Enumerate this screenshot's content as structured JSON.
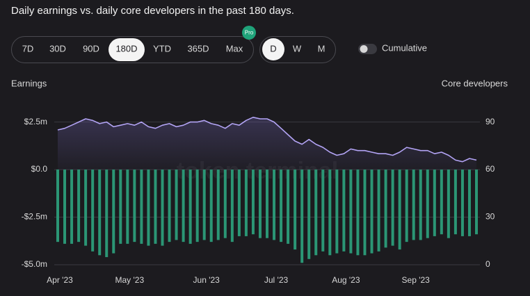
{
  "header": {
    "title": "Daily earnings vs. daily core developers in the past 180 days."
  },
  "controls": {
    "ranges": [
      "7D",
      "30D",
      "90D",
      "180D",
      "YTD",
      "365D",
      "Max"
    ],
    "selected_range": "180D",
    "pro_badge": "Pro",
    "granularity": [
      "D",
      "W",
      "M"
    ],
    "selected_granularity": "D",
    "toggle": "Cumulative"
  },
  "chart_data": {
    "type": "bar",
    "watermark": "token terminal",
    "categories": [
      "Apr '23",
      null,
      null,
      null,
      null,
      null,
      null,
      null,
      null,
      null,
      "May '23",
      null,
      null,
      null,
      null,
      null,
      null,
      null,
      null,
      null,
      null,
      "Jun '23",
      null,
      null,
      null,
      null,
      null,
      null,
      null,
      null,
      null,
      "Jul '23",
      null,
      null,
      null,
      null,
      null,
      null,
      null,
      null,
      null,
      "Aug '23",
      null,
      null,
      null,
      null,
      null,
      null,
      null,
      null,
      null,
      "Sep '23",
      null,
      null,
      null,
      null,
      null,
      null,
      null,
      null,
      null
    ],
    "series": [
      {
        "name": "Earnings",
        "type": "bar",
        "color": "#2b9675",
        "axis": "y",
        "values": [
          -3800000,
          -3900000,
          -3900000,
          -3800000,
          -4000000,
          -4300000,
          -4500000,
          -4600000,
          -4400000,
          -3900000,
          -3900000,
          -3800000,
          -3900000,
          -4000000,
          -3900000,
          -4000000,
          -3800000,
          -3700000,
          -3800000,
          -3900000,
          -3800000,
          -3700000,
          -3800000,
          -3700000,
          -3600000,
          -3800000,
          -3500000,
          -3500000,
          -3400000,
          -3600000,
          -3600000,
          -3700000,
          -3800000,
          -3900000,
          -4200000,
          -4900000,
          -4700000,
          -4500000,
          -4300000,
          -4500000,
          -4400000,
          -4300000,
          -4400000,
          -4500000,
          -4500000,
          -4400000,
          -4300000,
          -4100000,
          -4000000,
          -4200000,
          -3800000,
          -3700000,
          -3700000,
          -3600000,
          -3500000,
          -3400000,
          -3600000,
          -3400000,
          -3500000,
          -3500000,
          -3400000
        ]
      },
      {
        "name": "Core developers",
        "type": "line",
        "color": "#b3a4f5",
        "axis": "y2",
        "values": [
          85,
          86,
          88,
          90,
          92,
          91,
          89,
          90,
          87,
          88,
          89,
          88,
          90,
          87,
          86,
          88,
          89,
          87,
          88,
          90,
          90,
          91,
          89,
          88,
          86,
          89,
          88,
          91,
          93,
          92,
          92,
          90,
          86,
          82,
          78,
          76,
          79,
          76,
          74,
          71,
          69,
          70,
          73,
          72,
          72,
          71,
          70,
          70,
          69,
          71,
          74,
          73,
          72,
          72,
          70,
          71,
          69,
          66,
          65,
          67,
          66
        ]
      }
    ],
    "ylim": [
      -5000000,
      3800000
    ],
    "yticks": [
      {
        "value": -5000000,
        "label": "-$5.0m"
      },
      {
        "value": -2500000,
        "label": "-$2.5m"
      },
      {
        "value": 0,
        "label": "$0.0"
      },
      {
        "value": 2500000,
        "label": "$2.5m"
      }
    ],
    "y2lim": [
      0,
      105.6
    ],
    "y2ticks": [
      0,
      30,
      60,
      90
    ],
    "grid": true
  }
}
